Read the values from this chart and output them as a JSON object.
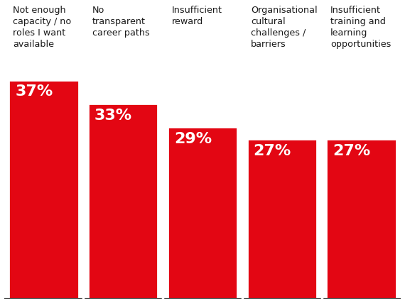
{
  "categories": [
    "Not enough\ncapacity / no\nroles I want\navailable",
    "No\ntransparent\ncareer paths",
    "Insufficient\nreward",
    "Organisational\ncultural\nchallenges /\nbarriers",
    "Insufficient\ntraining and\nlearning\nopportunities"
  ],
  "values": [
    37,
    33,
    29,
    27,
    27
  ],
  "labels": [
    "37%",
    "33%",
    "29%",
    "27%",
    "27%"
  ],
  "bar_color": "#E30613",
  "label_color": "#FFFFFF",
  "text_color": "#1A1A1A",
  "background_color": "#FFFFFF",
  "separator_color": "#FFFFFF",
  "bottom_line_color": "#111111",
  "bar_width": 0.88,
  "ylim": [
    0,
    50
  ],
  "label_fontsize": 16,
  "category_fontsize": 9.2,
  "figsize": [
    5.7,
    4.3
  ],
  "dpi": 100
}
